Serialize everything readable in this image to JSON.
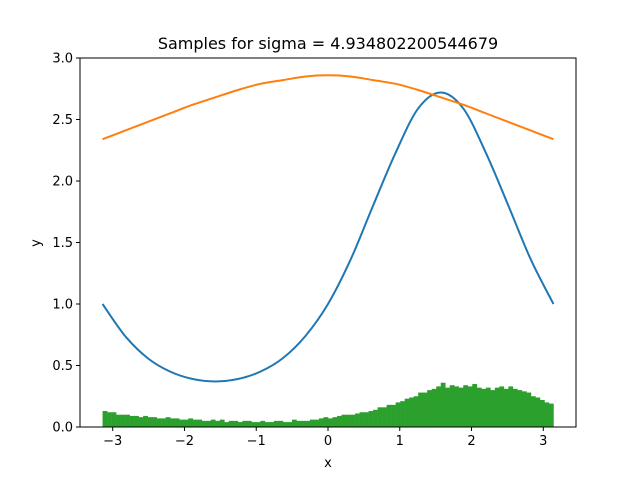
{
  "chart_data": {
    "type": "line",
    "title": "Samples for sigma = 4.934802200544679",
    "xlabel": "x",
    "ylabel": "y",
    "xlim": [
      -3.4558,
      3.4558
    ],
    "ylim": [
      0,
      3.0
    ],
    "x_ticks": [
      -3,
      -2,
      -1,
      0,
      1,
      2,
      3
    ],
    "x_tick_labels": [
      "−3",
      "−2",
      "−1",
      "0",
      "1",
      "2",
      "3"
    ],
    "y_ticks": [
      0.0,
      0.5,
      1.0,
      1.5,
      2.0,
      2.5,
      3.0
    ],
    "y_tick_labels": [
      "0.0",
      "0.5",
      "1.0",
      "1.5",
      "2.0",
      "2.5",
      "3.0"
    ],
    "grid": false,
    "legend": "none",
    "series": [
      {
        "type": "line",
        "color": "#1f77b4",
        "x": [
          -3.1416,
          -2.8274,
          -2.5133,
          -2.1991,
          -1.885,
          -1.5708,
          -1.2566,
          -0.9425,
          -0.6283,
          -0.3142,
          0.0,
          0.3142,
          0.6283,
          0.9425,
          1.2566,
          1.5708,
          1.885,
          2.1991,
          2.5133,
          2.8274,
          3.1416
        ],
        "y": [
          1.0,
          0.74,
          0.56,
          0.45,
          0.39,
          0.37,
          0.39,
          0.45,
          0.56,
          0.74,
          1.0,
          1.36,
          1.8,
          2.23,
          2.59,
          2.72,
          2.59,
          2.23,
          1.8,
          1.36,
          1.0
        ]
      },
      {
        "type": "line",
        "color": "#ff7f0e",
        "x": [
          -3.1416,
          -2.8274,
          -2.5133,
          -2.1991,
          -1.885,
          -1.5708,
          -1.2566,
          -0.9425,
          -0.6283,
          -0.3142,
          0.0,
          0.3142,
          0.6283,
          0.9425,
          1.2566,
          1.5708,
          1.885,
          2.1991,
          2.5133,
          2.8274,
          3.1416
        ],
        "y": [
          2.34,
          2.41,
          2.48,
          2.55,
          2.62,
          2.68,
          2.74,
          2.79,
          2.82,
          2.85,
          2.86,
          2.85,
          2.82,
          2.79,
          2.74,
          2.68,
          2.62,
          2.55,
          2.48,
          2.41,
          2.34
        ]
      },
      {
        "type": "histogram",
        "color": "#2ca02c",
        "bin_range": [
          -3.1416,
          3.1416
        ],
        "bins": 100,
        "heights": [
          0.13,
          0.12,
          0.12,
          0.1,
          0.1,
          0.1,
          0.09,
          0.09,
          0.08,
          0.09,
          0.08,
          0.08,
          0.07,
          0.07,
          0.08,
          0.07,
          0.07,
          0.06,
          0.06,
          0.07,
          0.06,
          0.06,
          0.05,
          0.05,
          0.06,
          0.05,
          0.06,
          0.04,
          0.05,
          0.05,
          0.04,
          0.05,
          0.05,
          0.04,
          0.04,
          0.05,
          0.04,
          0.04,
          0.05,
          0.05,
          0.04,
          0.04,
          0.06,
          0.05,
          0.05,
          0.05,
          0.06,
          0.06,
          0.07,
          0.08,
          0.07,
          0.08,
          0.09,
          0.1,
          0.1,
          0.1,
          0.11,
          0.12,
          0.12,
          0.13,
          0.14,
          0.16,
          0.16,
          0.18,
          0.18,
          0.2,
          0.21,
          0.23,
          0.24,
          0.25,
          0.28,
          0.28,
          0.3,
          0.31,
          0.33,
          0.36,
          0.32,
          0.34,
          0.33,
          0.32,
          0.34,
          0.33,
          0.35,
          0.32,
          0.31,
          0.32,
          0.3,
          0.32,
          0.33,
          0.31,
          0.33,
          0.31,
          0.3,
          0.29,
          0.28,
          0.25,
          0.24,
          0.22,
          0.2,
          0.19
        ]
      }
    ]
  }
}
